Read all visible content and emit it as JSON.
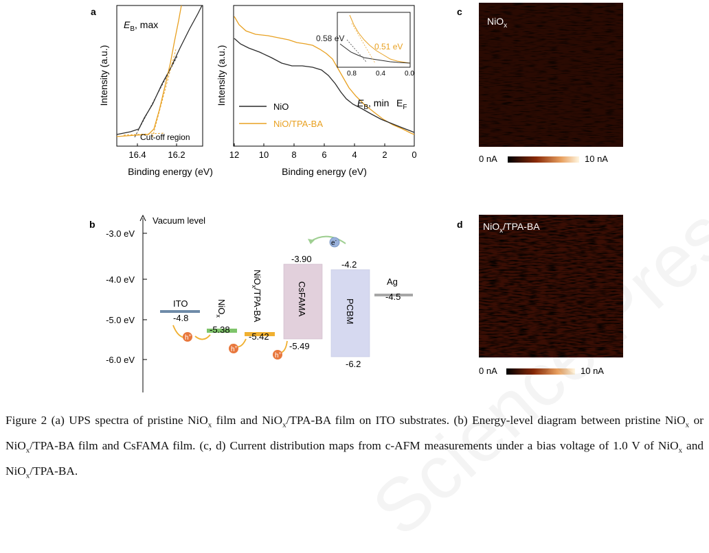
{
  "watermark": "Science Press",
  "panel_a": {
    "letter": "a",
    "left": {
      "ylabel": "Intensity (a.u.)",
      "xlabel": "Binding energy (eV)",
      "annotation_EB": "E",
      "annotation_EB_sub": "B",
      "annotation_max": ", max",
      "cutoff_label": "Cut-off region",
      "xticks": [
        "16.4",
        "16.2"
      ]
    },
    "right": {
      "ylabel": "Intensity (a.u.)",
      "xlabel": "Binding energy (eV)",
      "xticks": [
        "12",
        "10",
        "8",
        "6",
        "4",
        "2",
        "0"
      ],
      "legend": [
        "NiO",
        "NiO/TPA-BA"
      ],
      "annotation_min_E": "E",
      "annotation_min_sub": "B",
      "annotation_min_text": ", min",
      "annotation_EF": "E",
      "annotation_EF_sub": "F",
      "inset": {
        "xticks": [
          "0.8",
          "0.4",
          "0.0"
        ],
        "label_nio": "0.58 eV",
        "label_tpa": "0.51 eV"
      }
    }
  },
  "panel_b": {
    "letter": "b",
    "axis_title": "Vacuum level",
    "yticks": [
      "-3.0 eV",
      "-4.0 eV",
      "-5.0 eV",
      "-6.0 eV"
    ],
    "materials": {
      "ito": {
        "name": "ITO",
        "value": "-4.8"
      },
      "niox": {
        "name": "NiO",
        "name_sub": "x",
        "value": "-5.38"
      },
      "niox_tpa": {
        "name": "NiO",
        "name_sub": "x",
        "name_rest": "/TPA-BA",
        "value": "-5.42"
      },
      "csfama": {
        "name": "CsFAMA",
        "lumo": "-3.90",
        "homo": "-5.49"
      },
      "pcbm": {
        "name": "PCBM",
        "lumo": "-4.2",
        "homo": "-6.2"
      },
      "ag": {
        "name": "Ag",
        "value": "-4.5"
      }
    },
    "hole_symbol": "h",
    "hole_sup": "+",
    "electron_symbol": "e",
    "electron_sup": "-"
  },
  "panel_c": {
    "letter": "c",
    "label": "NiO",
    "label_sub": "x",
    "scale_min": "0 nA",
    "scale_max": "10 nA"
  },
  "panel_d": {
    "letter": "d",
    "label": "NiO",
    "label_sub": "x",
    "label_rest": "/TPA-BA",
    "scale_min": "0 nA",
    "scale_max": "10 nA"
  },
  "caption": {
    "p1": "Figure 2  (a) UPS spectra of pristine NiO",
    "x1": "x",
    "p2": " film and NiO",
    "x2": "x",
    "p3": "/TPA-BA film on ITO substrates. (b) Energy-level diagram between pristine NiO",
    "x3": "x",
    "p4": " or NiO",
    "x4": "x",
    "p5": "/TPA-BA film and CsFAMA film. (c, d) Current distribution maps from c-AFM measurements under a bias voltage of 1.0 V of NiO",
    "x5": "x",
    "p6": " and NiO",
    "x6": "x",
    "p7": "/TPA-BA."
  },
  "colors": {
    "nio_line": "#2a2a2a",
    "tpa_line": "#e8a020",
    "ito_bar": "#6f8ba8",
    "niox_bar": "#7ec46a",
    "niox_tpa_bar": "#f0b030",
    "csfama_box": "#e2d0dc",
    "pcbm_box": "#d6d9f0",
    "ag_bar": "#a6a6a6",
    "hole": "#e8773c",
    "electron": "#9ab2dc",
    "arrow_green": "#9fcf92",
    "arrow_orange": "#f0b030"
  }
}
